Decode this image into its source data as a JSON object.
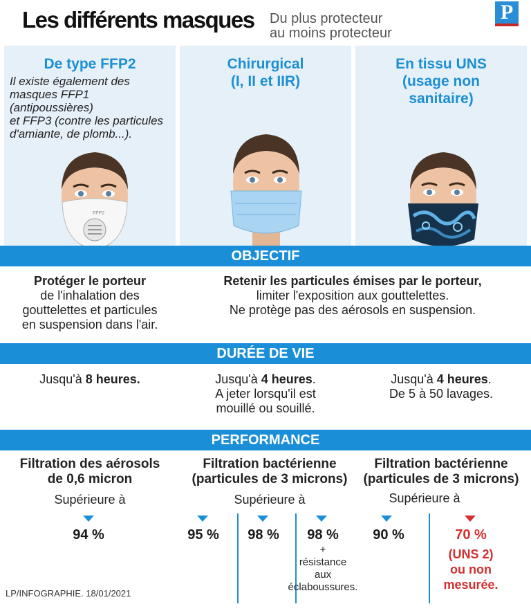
{
  "header": {
    "title": "Les différents masques",
    "subtitle_line1": "Du plus protecteur",
    "subtitle_line2": "au moins protecteur",
    "logo": "P"
  },
  "columns": [
    {
      "title_line1": "De type FFP2",
      "note": [
        "Il existe également des",
        "masques FFP1 (antipoussières)",
        "et FFP3 (contre les particules",
        "d'amiante, de plomb...)."
      ],
      "mask_text": "FFP2"
    },
    {
      "title_line1": "Chirurgical",
      "title_line2": "(I, II et IIR)"
    },
    {
      "title_line1": "En tissu UNS",
      "title_line2": "(usage non",
      "title_line3": "sanitaire)"
    }
  ],
  "objectif": {
    "band": "OBJECTIF",
    "left_bold": "Protéger le porteur",
    "left_lines": [
      "de l'inhalation des",
      "gouttelettes et particules",
      "en suspension dans l'air."
    ],
    "right_bold": "Retenir les particules émises par le porteur,",
    "right_lines": [
      "limiter l'exposition aux gouttelettes.",
      "Ne protège pas des aérosols en suspension."
    ]
  },
  "duree": {
    "band": "DURÉE DE VIE",
    "col1": {
      "prefix": "Jusqu'à ",
      "bold": "8 heures."
    },
    "col2": {
      "prefix": "Jusqu'à ",
      "bold": "4 heures",
      "suffix": ".",
      "line2": "A jeter lorsqu'il est",
      "line3": "mouillé ou souillé."
    },
    "col3": {
      "prefix": "Jusqu'à ",
      "bold": "4 heures",
      "suffix": ".",
      "line2": "De 5 à 50 lavages."
    }
  },
  "performance": {
    "band": "PERFORMANCE",
    "col1": {
      "head1": "Filtration des aérosols",
      "head2": "de 0,6 micron",
      "sup": "Supérieure à",
      "values": [
        "94 %"
      ]
    },
    "col2": {
      "head1": "Filtration bactérienne",
      "head2": "(particules de 3 microns)",
      "sup": "Supérieure à",
      "values": [
        "95 %",
        "98 %",
        "98 %"
      ],
      "extra": [
        "+",
        "résistance",
        "aux",
        "éclaboussures."
      ]
    },
    "col3": {
      "head1": "Filtration bactérienne",
      "head2": "(particules de 3 microns)",
      "sup": "Supérieure à",
      "values": [
        "90 %",
        "70 %"
      ],
      "red_extra": [
        "(UNS 2)",
        "ou non",
        "mesurée."
      ]
    }
  },
  "credit": "LP/INFOGRAPHIE. 18/01/2021",
  "colors": {
    "blue": "#1a8fd8",
    "red": "#d32f2f",
    "panel": "#e5f0f9"
  }
}
